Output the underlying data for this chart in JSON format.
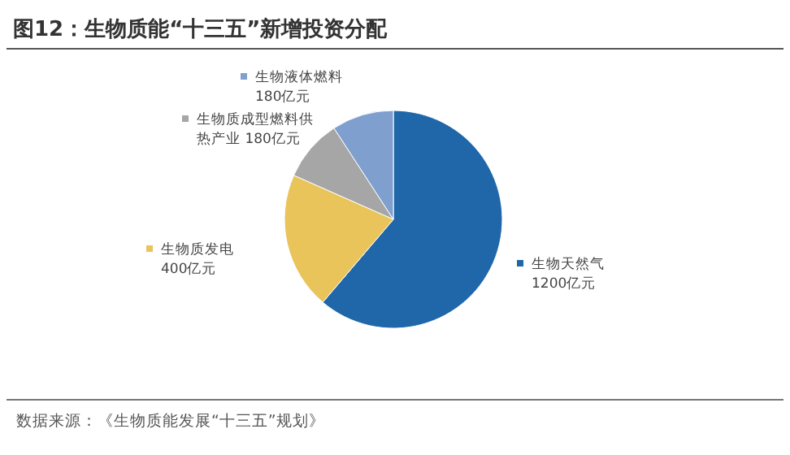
{
  "chart_data": {
    "type": "pie",
    "title": "图12：生物质能“十三五”新增投资分配",
    "categories": [
      "生物天然气",
      "生物质发电",
      "生物质成型燃料供热产业",
      "生物液体燃料"
    ],
    "values": [
      1200,
      400,
      180,
      180
    ],
    "value_labels": [
      "1200亿元",
      "400亿元",
      "180亿元",
      "180亿元"
    ],
    "colors": [
      "#1f67a8",
      "#e8c45a",
      "#a6a6a6",
      "#7f9fcf"
    ],
    "legend": "top left",
    "annotations": [
      "数据来源：《生物质能发展“十三五”规划》"
    ]
  }
}
